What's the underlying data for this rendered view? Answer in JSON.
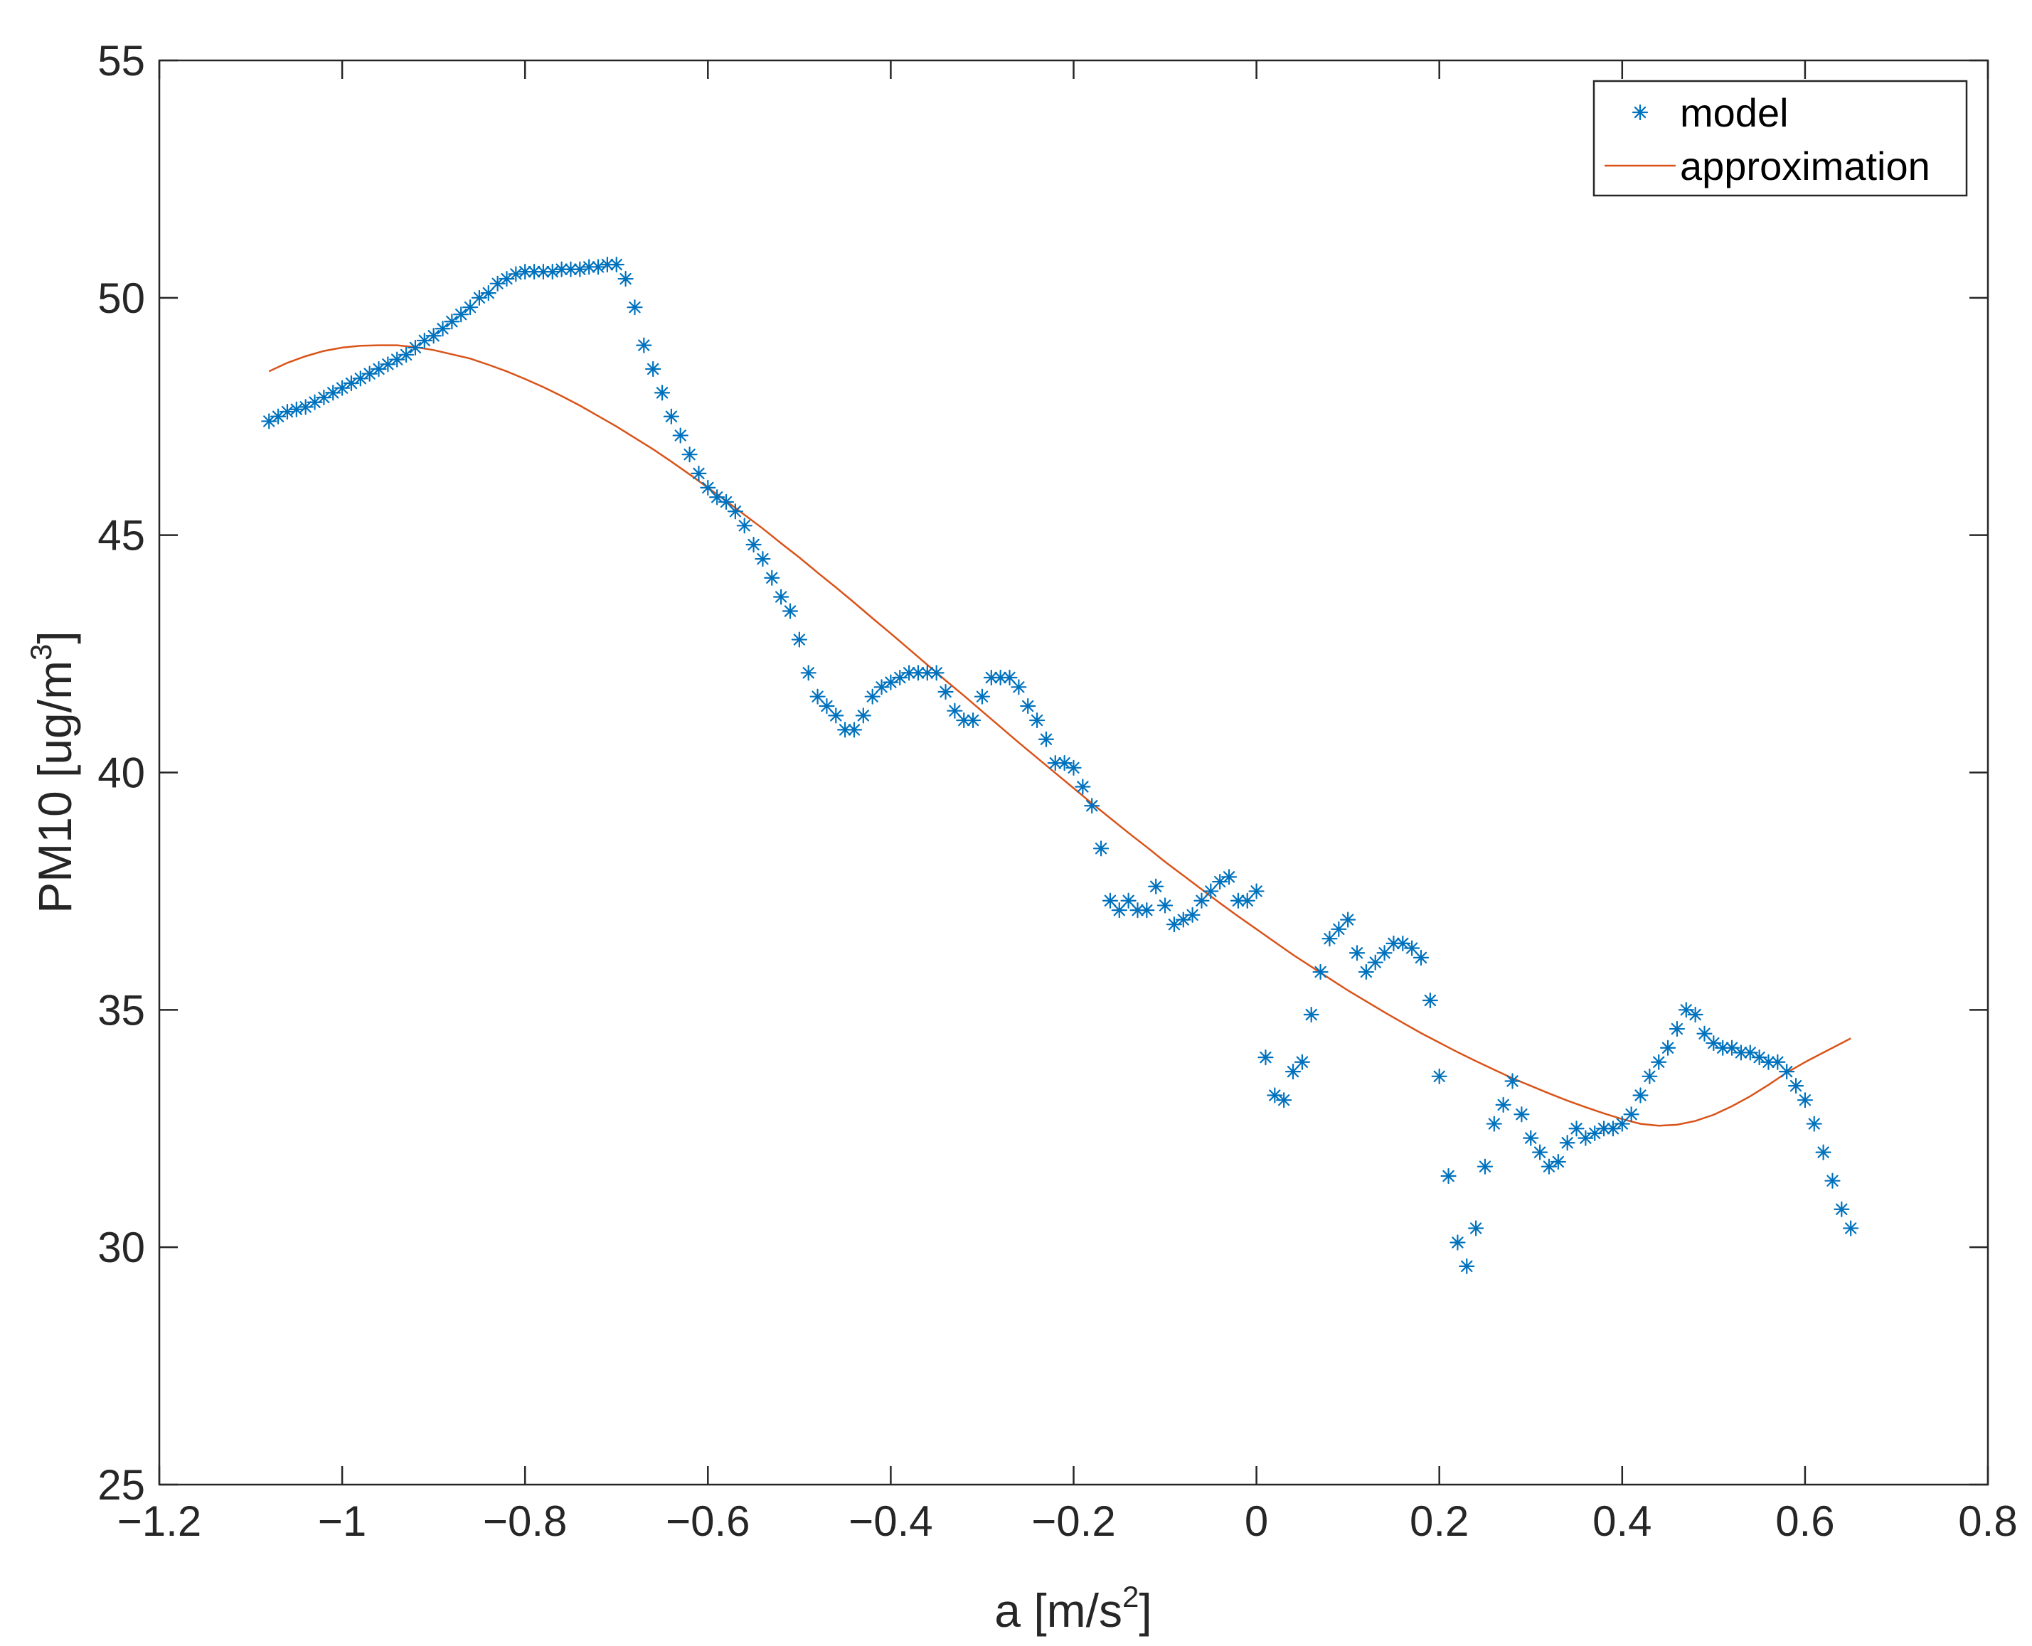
{
  "chart_data": {
    "type": "scatter",
    "title": "",
    "xlabel": "a [m/s",
    "xlabel_sup": "2",
    "xlabel_end": "]",
    "ylabel": "PM10 [ug/m",
    "ylabel_sup": "3",
    "ylabel_end": "]",
    "xlim": [
      -1.2,
      0.8
    ],
    "ylim": [
      25,
      55
    ],
    "x_ticks": [
      -1.2,
      -1,
      -0.8,
      -0.6,
      -0.4,
      -0.2,
      0,
      0.2,
      0.4,
      0.6,
      0.8
    ],
    "x_tick_labels": [
      "−1.2",
      "−1",
      "−0.8",
      "−0.6",
      "−0.4",
      "−0.2",
      "0",
      "0.2",
      "0.4",
      "0.6",
      "0.8"
    ],
    "y_ticks": [
      25,
      30,
      35,
      40,
      45,
      50,
      55
    ],
    "y_tick_labels": [
      "25",
      "30",
      "35",
      "40",
      "45",
      "50",
      "55"
    ],
    "grid": false,
    "legend_position": "top-right",
    "colors": {
      "model": "#0072BD",
      "approximation": "#D95319",
      "axis": "#262626"
    },
    "series": [
      {
        "name": "model",
        "kind": "scatter",
        "marker": "asterisk",
        "points": [
          [
            -1.08,
            47.4
          ],
          [
            -1.07,
            47.5
          ],
          [
            -1.06,
            47.6
          ],
          [
            -1.05,
            47.65
          ],
          [
            -1.04,
            47.7
          ],
          [
            -1.03,
            47.8
          ],
          [
            -1.02,
            47.9
          ],
          [
            -1.01,
            48.0
          ],
          [
            -1.0,
            48.1
          ],
          [
            -0.99,
            48.2
          ],
          [
            -0.98,
            48.3
          ],
          [
            -0.97,
            48.4
          ],
          [
            -0.96,
            48.5
          ],
          [
            -0.95,
            48.6
          ],
          [
            -0.94,
            48.7
          ],
          [
            -0.93,
            48.8
          ],
          [
            -0.92,
            48.95
          ],
          [
            -0.91,
            49.1
          ],
          [
            -0.9,
            49.2
          ],
          [
            -0.89,
            49.35
          ],
          [
            -0.88,
            49.5
          ],
          [
            -0.87,
            49.65
          ],
          [
            -0.86,
            49.8
          ],
          [
            -0.85,
            50.0
          ],
          [
            -0.84,
            50.1
          ],
          [
            -0.83,
            50.3
          ],
          [
            -0.82,
            50.4
          ],
          [
            -0.81,
            50.5
          ],
          [
            -0.8,
            50.55
          ],
          [
            -0.79,
            50.55
          ],
          [
            -0.78,
            50.55
          ],
          [
            -0.77,
            50.55
          ],
          [
            -0.76,
            50.6
          ],
          [
            -0.75,
            50.6
          ],
          [
            -0.74,
            50.6
          ],
          [
            -0.73,
            50.65
          ],
          [
            -0.72,
            50.65
          ],
          [
            -0.71,
            50.7
          ],
          [
            -0.7,
            50.7
          ],
          [
            -0.69,
            50.4
          ],
          [
            -0.68,
            49.8
          ],
          [
            -0.67,
            49.0
          ],
          [
            -0.66,
            48.5
          ],
          [
            -0.65,
            48.0
          ],
          [
            -0.64,
            47.5
          ],
          [
            -0.63,
            47.1
          ],
          [
            -0.62,
            46.7
          ],
          [
            -0.61,
            46.3
          ],
          [
            -0.6,
            46.0
          ],
          [
            -0.59,
            45.8
          ],
          [
            -0.58,
            45.7
          ],
          [
            -0.57,
            45.5
          ],
          [
            -0.56,
            45.2
          ],
          [
            -0.55,
            44.8
          ],
          [
            -0.54,
            44.5
          ],
          [
            -0.53,
            44.1
          ],
          [
            -0.52,
            43.7
          ],
          [
            -0.51,
            43.4
          ],
          [
            -0.5,
            42.8
          ],
          [
            -0.49,
            42.1
          ],
          [
            -0.48,
            41.6
          ],
          [
            -0.47,
            41.4
          ],
          [
            -0.46,
            41.2
          ],
          [
            -0.45,
            40.9
          ],
          [
            -0.44,
            40.9
          ],
          [
            -0.43,
            41.2
          ],
          [
            -0.42,
            41.6
          ],
          [
            -0.41,
            41.8
          ],
          [
            -0.4,
            41.9
          ],
          [
            -0.39,
            42.0
          ],
          [
            -0.38,
            42.1
          ],
          [
            -0.37,
            42.1
          ],
          [
            -0.36,
            42.1
          ],
          [
            -0.35,
            42.1
          ],
          [
            -0.34,
            41.7
          ],
          [
            -0.33,
            41.3
          ],
          [
            -0.32,
            41.1
          ],
          [
            -0.31,
            41.1
          ],
          [
            -0.3,
            41.6
          ],
          [
            -0.29,
            42.0
          ],
          [
            -0.28,
            42.0
          ],
          [
            -0.27,
            42.0
          ],
          [
            -0.26,
            41.8
          ],
          [
            -0.25,
            41.4
          ],
          [
            -0.24,
            41.1
          ],
          [
            -0.23,
            40.7
          ],
          [
            -0.22,
            40.2
          ],
          [
            -0.21,
            40.2
          ],
          [
            -0.2,
            40.1
          ],
          [
            -0.19,
            39.7
          ],
          [
            -0.18,
            39.3
          ],
          [
            -0.17,
            38.4
          ],
          [
            -0.16,
            37.3
          ],
          [
            -0.15,
            37.1
          ],
          [
            -0.14,
            37.3
          ],
          [
            -0.13,
            37.1
          ],
          [
            -0.12,
            37.1
          ],
          [
            -0.11,
            37.6
          ],
          [
            -0.1,
            37.2
          ],
          [
            -0.09,
            36.8
          ],
          [
            -0.08,
            36.9
          ],
          [
            -0.07,
            37.0
          ],
          [
            -0.06,
            37.3
          ],
          [
            -0.05,
            37.5
          ],
          [
            -0.04,
            37.7
          ],
          [
            -0.03,
            37.8
          ],
          [
            -0.02,
            37.3
          ],
          [
            -0.01,
            37.3
          ],
          [
            0.0,
            37.5
          ],
          [
            0.01,
            34.0
          ],
          [
            0.02,
            33.2
          ],
          [
            0.03,
            33.1
          ],
          [
            0.04,
            33.7
          ],
          [
            0.05,
            33.9
          ],
          [
            0.06,
            34.9
          ],
          [
            0.07,
            35.8
          ],
          [
            0.08,
            36.5
          ],
          [
            0.09,
            36.7
          ],
          [
            0.1,
            36.9
          ],
          [
            0.11,
            36.2
          ],
          [
            0.12,
            35.8
          ],
          [
            0.13,
            36.0
          ],
          [
            0.14,
            36.2
          ],
          [
            0.15,
            36.4
          ],
          [
            0.16,
            36.4
          ],
          [
            0.17,
            36.3
          ],
          [
            0.18,
            36.1
          ],
          [
            0.19,
            35.2
          ],
          [
            0.2,
            33.6
          ],
          [
            0.21,
            31.5
          ],
          [
            0.22,
            30.1
          ],
          [
            0.23,
            29.6
          ],
          [
            0.24,
            30.4
          ],
          [
            0.25,
            31.7
          ],
          [
            0.26,
            32.6
          ],
          [
            0.27,
            33.0
          ],
          [
            0.28,
            33.5
          ],
          [
            0.29,
            32.8
          ],
          [
            0.3,
            32.3
          ],
          [
            0.31,
            32.0
          ],
          [
            0.32,
            31.7
          ],
          [
            0.33,
            31.8
          ],
          [
            0.34,
            32.2
          ],
          [
            0.35,
            32.5
          ],
          [
            0.36,
            32.3
          ],
          [
            0.37,
            32.4
          ],
          [
            0.38,
            32.5
          ],
          [
            0.39,
            32.5
          ],
          [
            0.4,
            32.6
          ],
          [
            0.41,
            32.8
          ],
          [
            0.42,
            33.2
          ],
          [
            0.43,
            33.6
          ],
          [
            0.44,
            33.9
          ],
          [
            0.45,
            34.2
          ],
          [
            0.46,
            34.6
          ],
          [
            0.47,
            35.0
          ],
          [
            0.48,
            34.9
          ],
          [
            0.49,
            34.5
          ],
          [
            0.5,
            34.3
          ],
          [
            0.51,
            34.2
          ],
          [
            0.52,
            34.2
          ],
          [
            0.53,
            34.1
          ],
          [
            0.54,
            34.1
          ],
          [
            0.55,
            34.0
          ],
          [
            0.56,
            33.9
          ],
          [
            0.57,
            33.9
          ],
          [
            0.58,
            33.7
          ],
          [
            0.59,
            33.4
          ],
          [
            0.6,
            33.1
          ],
          [
            0.61,
            32.6
          ],
          [
            0.62,
            32.0
          ],
          [
            0.63,
            31.4
          ],
          [
            0.64,
            30.8
          ],
          [
            0.65,
            30.4
          ]
        ]
      },
      {
        "name": "approximation",
        "kind": "line",
        "points": [
          [
            -1.08,
            48.45
          ],
          [
            -1.06,
            48.63
          ],
          [
            -1.04,
            48.77
          ],
          [
            -1.02,
            48.88
          ],
          [
            -1.0,
            48.95
          ],
          [
            -0.98,
            48.99
          ],
          [
            -0.96,
            49.0
          ],
          [
            -0.94,
            49.0
          ],
          [
            -0.92,
            48.96
          ],
          [
            -0.9,
            48.9
          ],
          [
            -0.88,
            48.81
          ],
          [
            -0.86,
            48.72
          ],
          [
            -0.84,
            48.59
          ],
          [
            -0.82,
            48.45
          ],
          [
            -0.8,
            48.29
          ],
          [
            -0.78,
            48.12
          ],
          [
            -0.76,
            47.93
          ],
          [
            -0.74,
            47.73
          ],
          [
            -0.72,
            47.51
          ],
          [
            -0.7,
            47.29
          ],
          [
            -0.68,
            47.05
          ],
          [
            -0.66,
            46.81
          ],
          [
            -0.64,
            46.55
          ],
          [
            -0.62,
            46.28
          ],
          [
            -0.6,
            46.0
          ],
          [
            -0.58,
            45.72
          ],
          [
            -0.56,
            45.43
          ],
          [
            -0.54,
            45.14
          ],
          [
            -0.52,
            44.83
          ],
          [
            -0.5,
            44.53
          ],
          [
            -0.48,
            44.21
          ],
          [
            -0.46,
            43.9
          ],
          [
            -0.44,
            43.58
          ],
          [
            -0.42,
            43.25
          ],
          [
            -0.4,
            42.93
          ],
          [
            -0.38,
            42.6
          ],
          [
            -0.36,
            42.27
          ],
          [
            -0.34,
            41.94
          ],
          [
            -0.32,
            41.62
          ],
          [
            -0.3,
            41.29
          ],
          [
            -0.28,
            40.96
          ],
          [
            -0.26,
            40.63
          ],
          [
            -0.24,
            40.31
          ],
          [
            -0.22,
            39.99
          ],
          [
            -0.2,
            39.67
          ],
          [
            -0.18,
            39.35
          ],
          [
            -0.16,
            39.04
          ],
          [
            -0.14,
            38.73
          ],
          [
            -0.12,
            38.43
          ],
          [
            -0.1,
            38.12
          ],
          [
            -0.08,
            37.83
          ],
          [
            -0.06,
            37.54
          ],
          [
            -0.04,
            37.25
          ],
          [
            -0.02,
            36.97
          ],
          [
            0.0,
            36.7
          ],
          [
            0.02,
            36.43
          ],
          [
            0.04,
            36.16
          ],
          [
            0.06,
            35.91
          ],
          [
            0.08,
            35.66
          ],
          [
            0.1,
            35.41
          ],
          [
            0.12,
            35.18
          ],
          [
            0.14,
            34.95
          ],
          [
            0.16,
            34.73
          ],
          [
            0.18,
            34.51
          ],
          [
            0.2,
            34.31
          ],
          [
            0.22,
            34.11
          ],
          [
            0.24,
            33.92
          ],
          [
            0.26,
            33.74
          ],
          [
            0.28,
            33.56
          ],
          [
            0.3,
            33.4
          ],
          [
            0.32,
            33.24
          ],
          [
            0.34,
            33.09
          ],
          [
            0.36,
            32.95
          ],
          [
            0.38,
            32.82
          ],
          [
            0.4,
            32.7
          ],
          [
            0.42,
            32.6
          ],
          [
            0.44,
            32.56
          ],
          [
            0.46,
            32.58
          ],
          [
            0.48,
            32.66
          ],
          [
            0.5,
            32.79
          ],
          [
            0.52,
            32.97
          ],
          [
            0.54,
            33.18
          ],
          [
            0.56,
            33.42
          ],
          [
            0.58,
            33.68
          ],
          [
            0.6,
            33.9
          ],
          [
            0.62,
            34.1
          ],
          [
            0.64,
            34.3
          ],
          [
            0.65,
            34.4
          ]
        ]
      }
    ]
  }
}
